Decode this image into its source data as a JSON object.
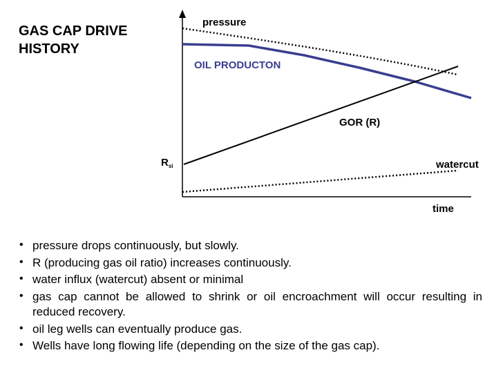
{
  "title": {
    "line1": "GAS CAP DRIVE",
    "line2": "HISTORY"
  },
  "diagram": {
    "labels": {
      "pressure": "pressure",
      "oil_production": "OIL PRODUCTON",
      "gor": "GOR (R)",
      "rsi_main": "R",
      "rsi_sub": "si",
      "watercut": "watercut",
      "time": "time"
    },
    "colors": {
      "oil_production": "#3a3d8f",
      "lines": "#000000"
    }
  },
  "bullets": [
    "pressure drops continuously, but slowly.",
    "R (producing gas oil ratio) increases continuously.",
    "water influx (watercut) absent or minimal",
    "gas cap cannot be allowed to shrink or oil encroachment will occur resulting in reduced recovery.",
    "oil leg wells can eventually produce gas.",
    "Wells have long flowing life (depending on the size of the gas cap)."
  ]
}
